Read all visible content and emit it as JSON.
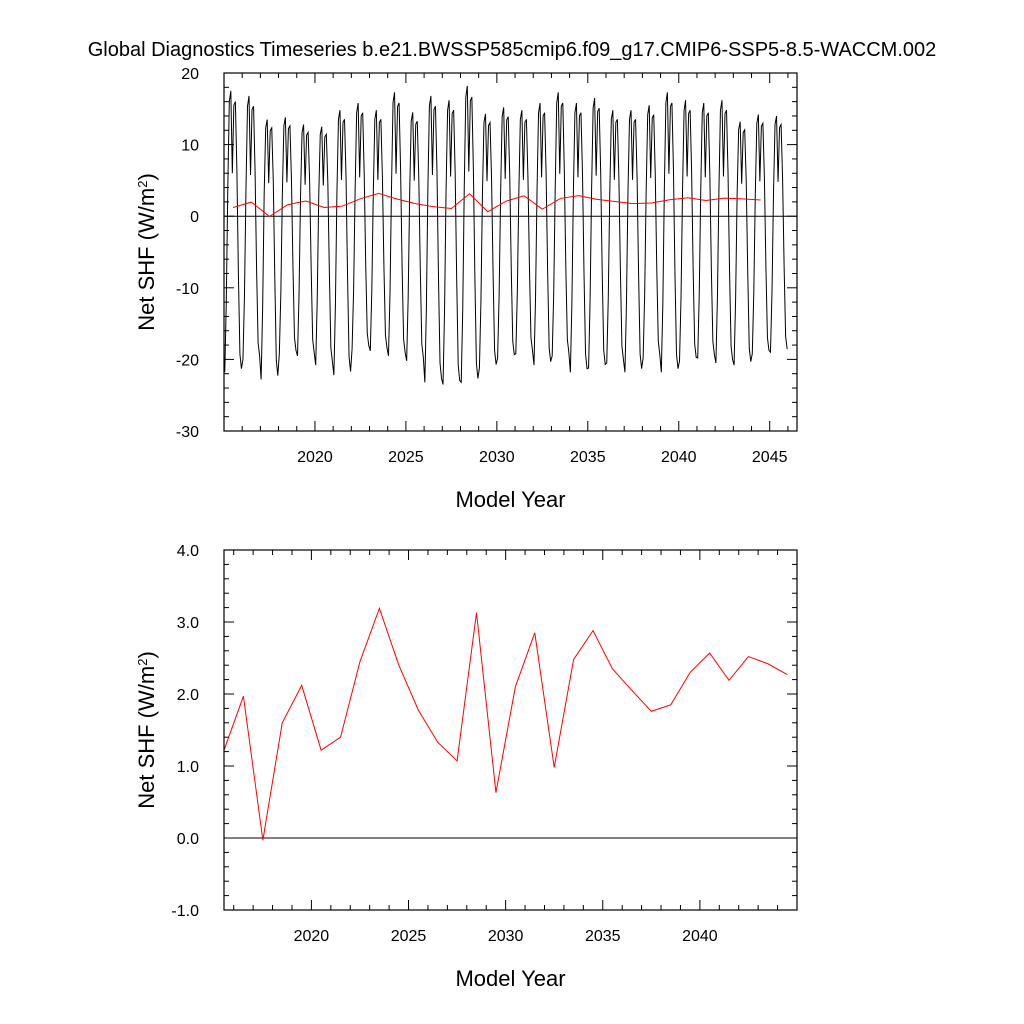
{
  "figure": {
    "title": "Global Diagnostics Timeseries b.e21.BWSSP585cmip6.f09_g17.CMIP6-SSP5-8.5-WACCM.002"
  },
  "chart_data": [
    {
      "type": "line",
      "xlabel": "Model Year",
      "ylabel": "Net SHF (W/m²)",
      "ylabel_parts": [
        "Net SHF (W/m",
        "2",
        ")"
      ],
      "xlim": [
        2015,
        2046.5
      ],
      "ylim": [
        -30,
        20
      ],
      "x_ticks": [
        2020,
        2025,
        2030,
        2035,
        2040,
        2045
      ],
      "x_tick_labels": [
        "2020",
        "2025",
        "2030",
        "2035",
        "2040",
        "2045"
      ],
      "y_ticks": [
        -30,
        -20,
        -10,
        0,
        10,
        20
      ],
      "y_tick_labels": [
        "-30",
        "-20",
        "-10",
        "0",
        "10",
        "20"
      ],
      "reference_line_y": 0,
      "series": [
        {
          "kind": "monthly",
          "color": "#000000",
          "start_year": 2015,
          "monthly_pattern_values": [
            -21.5,
            -12,
            4,
            16,
            17.5,
            6,
            15.5,
            16,
            6.5,
            -8,
            -19,
            -21
          ],
          "annual_peaks": [
            17.5,
            16.8,
            13.5,
            13.8,
            12.8,
            12.5,
            14.8,
            15.8,
            14.8,
            17.3,
            14.5,
            16.8,
            16.2,
            18.2,
            14.3,
            15.2,
            14.8,
            15.8,
            17.3,
            15.8,
            16.5,
            14.8,
            14.8,
            15.5,
            17.3,
            16.2,
            15.8,
            16.2,
            13.2,
            14.2,
            14
          ],
          "annual_troughs": [
            -21.8,
            -20.0,
            -22.8,
            -19.2,
            -19.5,
            -20.8,
            -22.2,
            -18.5,
            -18.8,
            -19.5,
            -20.2,
            -23.2,
            -23.5,
            -23.2,
            -21.2,
            -19.8,
            -19.2,
            -20.8,
            -19.5,
            -21.8,
            -21.2,
            -20.5,
            -21.8,
            -19.8,
            -21.8,
            -20.2,
            -19.8,
            -20.5,
            -20.8,
            -19.2,
            -19
          ]
        },
        {
          "kind": "annual",
          "color": "#ff0000",
          "x": [
            2015.5,
            2016.5,
            2017.5,
            2018.5,
            2019.5,
            2020.5,
            2021.5,
            2022.5,
            2023.5,
            2024.5,
            2025.5,
            2026.5,
            2027.5,
            2028.5,
            2029.5,
            2030.5,
            2031.5,
            2032.5,
            2033.5,
            2034.5,
            2035.5,
            2036.5,
            2037.5,
            2038.5,
            2039.5,
            2040.5,
            2041.5,
            2042.5,
            2043.5,
            2044.5
          ],
          "values": [
            1.22,
            1.97,
            -0.03,
            1.6,
            2.12,
            1.22,
            1.4,
            2.45,
            3.19,
            2.4,
            1.78,
            1.33,
            1.07,
            3.13,
            0.63,
            2.1,
            2.85,
            0.98,
            2.48,
            2.88,
            2.35,
            2.05,
            1.76,
            1.85,
            2.3,
            2.57,
            2.19,
            2.52,
            2.42,
            2.27
          ]
        }
      ]
    },
    {
      "type": "line",
      "xlabel": "Model Year",
      "ylabel": "Net SHF (W/m²)",
      "ylabel_parts": [
        "Net SHF (W/m",
        "2",
        ")"
      ],
      "xlim": [
        2015.5,
        2045
      ],
      "ylim": [
        -1,
        4
      ],
      "x_ticks": [
        2020,
        2025,
        2030,
        2035,
        2040
      ],
      "x_tick_labels": [
        "2020",
        "2025",
        "2030",
        "2035",
        "2040"
      ],
      "y_ticks": [
        -1,
        0,
        1,
        2,
        3,
        4
      ],
      "y_tick_labels": [
        "-1.0",
        "0.0",
        "1.0",
        "2.0",
        "3.0",
        "4.0"
      ],
      "reference_line_y": 0,
      "series": [
        {
          "kind": "annual",
          "color": "#ff0000",
          "x": [
            2015.5,
            2016.5,
            2017.5,
            2018.5,
            2019.5,
            2020.5,
            2021.5,
            2022.5,
            2023.5,
            2024.5,
            2025.5,
            2026.5,
            2027.5,
            2028.5,
            2029.5,
            2030.5,
            2031.5,
            2032.5,
            2033.5,
            2034.5,
            2035.5,
            2036.5,
            2037.5,
            2038.5,
            2039.5,
            2040.5,
            2041.5,
            2042.5,
            2043.5,
            2044.5
          ],
          "values": [
            1.22,
            1.97,
            -0.03,
            1.6,
            2.12,
            1.22,
            1.4,
            2.45,
            3.19,
            2.4,
            1.78,
            1.33,
            1.07,
            3.13,
            0.63,
            2.1,
            2.85,
            0.98,
            2.48,
            2.88,
            2.35,
            2.05,
            1.76,
            1.85,
            2.3,
            2.57,
            2.19,
            2.52,
            2.42,
            2.27
          ]
        }
      ]
    }
  ]
}
